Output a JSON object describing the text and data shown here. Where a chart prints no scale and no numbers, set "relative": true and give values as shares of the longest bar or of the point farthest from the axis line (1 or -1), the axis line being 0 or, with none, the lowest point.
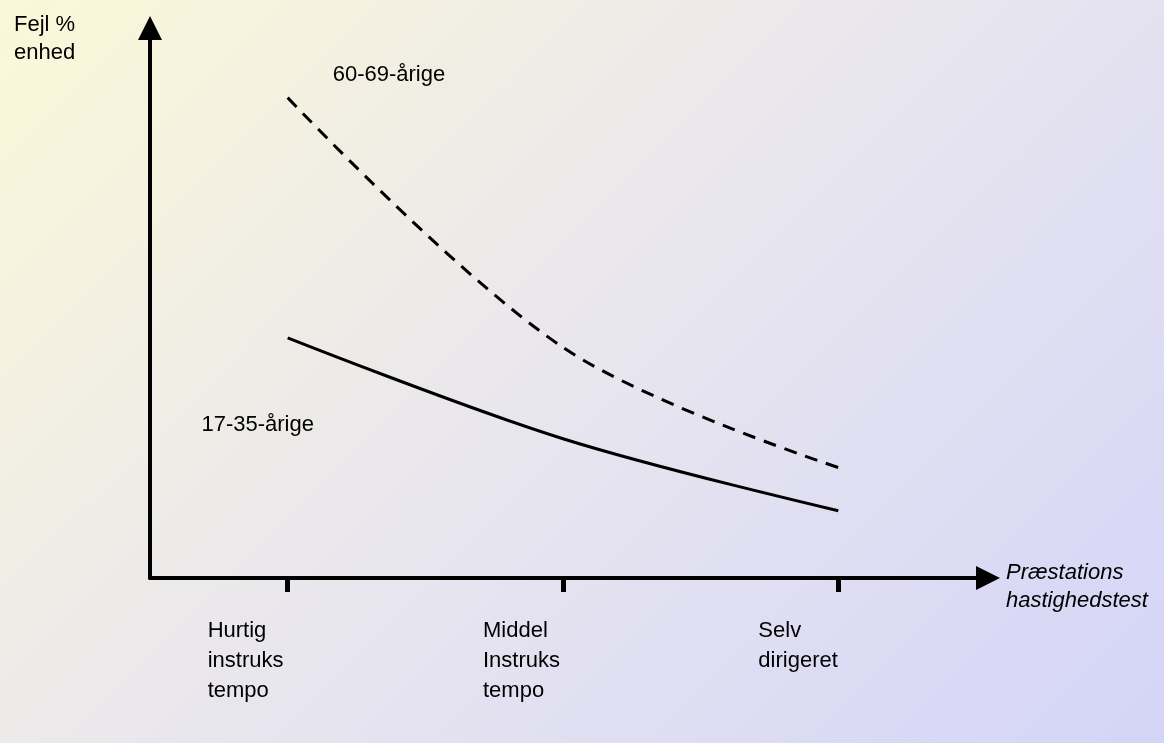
{
  "chart_data": {
    "type": "line",
    "relative": true,
    "xlabel": "Præstations hastighedstest",
    "ylabel": "Fejl % enhed",
    "categories": [
      "Hurtig instruks tempo",
      "Middel Instruks tempo",
      "Selv dirigeret"
    ],
    "series": [
      {
        "name": "60-69-årige",
        "color": "#000000",
        "line_style": "dashed",
        "values": [
          1,
          0.48,
          0.23
        ]
      },
      {
        "name": "17-35-årige",
        "color": "#000000",
        "line_style": "solid",
        "values": [
          0.5,
          0.29,
          0.14
        ]
      }
    ],
    "legend": false,
    "grid": false,
    "marker": "none"
  }
}
